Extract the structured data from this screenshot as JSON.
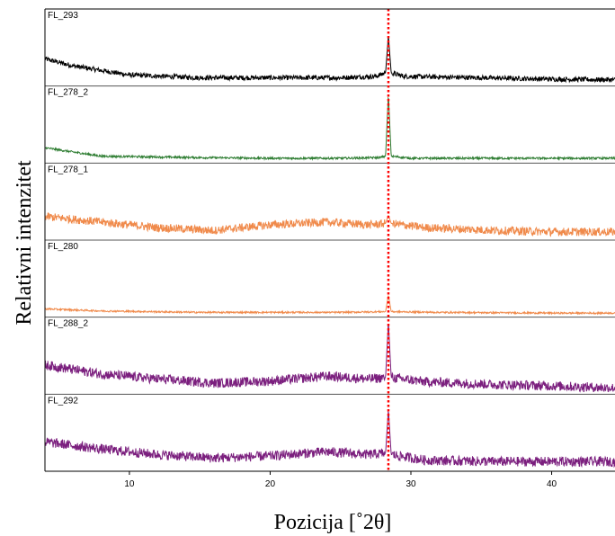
{
  "chart_data": {
    "type": "line",
    "xlabel": "Pozicija [˚2θ]",
    "ylabel": "Relativni intenzitet",
    "xlim": [
      4,
      44.5
    ],
    "x_ticks": [
      "10",
      "20",
      "30",
      "40"
    ],
    "x_tick_values": [
      10,
      20,
      30,
      40
    ],
    "reference_line": {
      "x": 28.4,
      "color": "#ff0000",
      "style": "dotted"
    },
    "grid": false,
    "series": [
      {
        "name": "FL_293",
        "color": "#000000",
        "points": [
          [
            4,
            0.35
          ],
          [
            6,
            0.25
          ],
          [
            10,
            0.12
          ],
          [
            15,
            0.08
          ],
          [
            20,
            0.08
          ],
          [
            25,
            0.08
          ],
          [
            27.5,
            0.1
          ],
          [
            28.2,
            0.15
          ],
          [
            28.4,
            0.68
          ],
          [
            28.6,
            0.15
          ],
          [
            29.5,
            0.1
          ],
          [
            35,
            0.08
          ],
          [
            40,
            0.06
          ],
          [
            44.5,
            0.05
          ]
        ]
      },
      {
        "name": "FL_278_2",
        "color": "#2e7d32",
        "points": [
          [
            4,
            0.18
          ],
          [
            8,
            0.06
          ],
          [
            15,
            0.04
          ],
          [
            20,
            0.03
          ],
          [
            25,
            0.03
          ],
          [
            27.8,
            0.04
          ],
          [
            28.2,
            0.06
          ],
          [
            28.4,
            0.95
          ],
          [
            28.6,
            0.06
          ],
          [
            30,
            0.03
          ],
          [
            40,
            0.03
          ],
          [
            44.5,
            0.03
          ]
        ]
      },
      {
        "name": "FL_278_1",
        "color": "#f08a4b",
        "points": [
          [
            4,
            0.3
          ],
          [
            8,
            0.22
          ],
          [
            12,
            0.14
          ],
          [
            16,
            0.1
          ],
          [
            20,
            0.18
          ],
          [
            24,
            0.22
          ],
          [
            27,
            0.18
          ],
          [
            28.2,
            0.2
          ],
          [
            28.4,
            0.32
          ],
          [
            28.6,
            0.2
          ],
          [
            31,
            0.14
          ],
          [
            36,
            0.1
          ],
          [
            40,
            0.08
          ],
          [
            44.5,
            0.08
          ]
        ]
      },
      {
        "name": "FL_280",
        "color": "#f08a4b",
        "points": [
          [
            4,
            0.08
          ],
          [
            8,
            0.05
          ],
          [
            15,
            0.03
          ],
          [
            20,
            0.03
          ],
          [
            25,
            0.03
          ],
          [
            28.2,
            0.04
          ],
          [
            28.4,
            0.28
          ],
          [
            28.6,
            0.04
          ],
          [
            32,
            0.03
          ],
          [
            40,
            0.02
          ],
          [
            44.5,
            0.02
          ]
        ]
      },
      {
        "name": "FL_288_2",
        "color": "#7b1f7e",
        "points": [
          [
            4,
            0.38
          ],
          [
            8,
            0.25
          ],
          [
            12,
            0.18
          ],
          [
            16,
            0.12
          ],
          [
            20,
            0.15
          ],
          [
            24,
            0.22
          ],
          [
            27,
            0.18
          ],
          [
            28.2,
            0.2
          ],
          [
            28.4,
            1.0
          ],
          [
            28.6,
            0.2
          ],
          [
            31,
            0.14
          ],
          [
            36,
            0.1
          ],
          [
            40,
            0.08
          ],
          [
            44.5,
            0.05
          ]
        ]
      },
      {
        "name": "FL_292",
        "color": "#7b1f7e",
        "points": [
          [
            4,
            0.38
          ],
          [
            8,
            0.28
          ],
          [
            12,
            0.2
          ],
          [
            16,
            0.15
          ],
          [
            20,
            0.18
          ],
          [
            24,
            0.24
          ],
          [
            27,
            0.2
          ],
          [
            28.2,
            0.22
          ],
          [
            28.4,
            0.85
          ],
          [
            28.6,
            0.2
          ],
          [
            31,
            0.12
          ],
          [
            36,
            0.1
          ],
          [
            40,
            0.1
          ],
          [
            44.5,
            0.1
          ]
        ]
      }
    ]
  }
}
